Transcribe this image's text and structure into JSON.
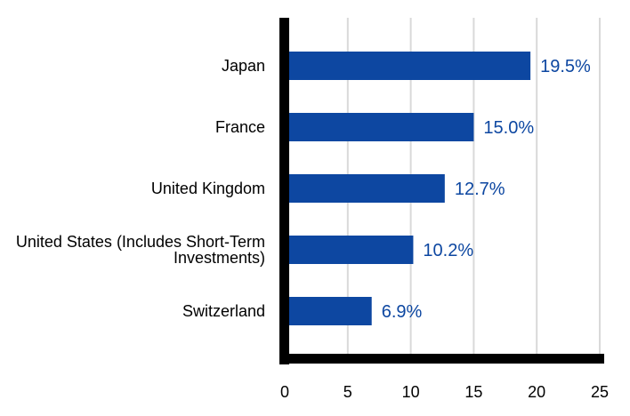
{
  "chart_data": {
    "type": "bar",
    "orientation": "horizontal",
    "categories": [
      "Japan",
      "France",
      "United Kingdom",
      "United States (Includes Short-Term Investments)",
      "Switzerland"
    ],
    "category_lines": [
      [
        "Japan"
      ],
      [
        "France"
      ],
      [
        "United Kingdom"
      ],
      [
        "United States (Includes Short-Term",
        "Investments)"
      ],
      [
        "Switzerland"
      ]
    ],
    "values": [
      19.5,
      15.0,
      12.7,
      10.2,
      6.9
    ],
    "value_labels": [
      "19.5%",
      "15.0%",
      "12.7%",
      "10.2%",
      "6.9%"
    ],
    "xlim": [
      0,
      25
    ],
    "xticks": [
      0,
      5,
      10,
      15,
      20,
      25
    ],
    "xtick_labels": [
      "0",
      "5",
      "10",
      "15",
      "20",
      "25"
    ],
    "grid": "vertical",
    "legend": "none",
    "title": "",
    "xlabel": "",
    "ylabel": "",
    "colors": {
      "bar": "#0d47a1",
      "value_label": "#0d47a1",
      "grid": "#d9d9d9",
      "axis": "#000000"
    }
  }
}
